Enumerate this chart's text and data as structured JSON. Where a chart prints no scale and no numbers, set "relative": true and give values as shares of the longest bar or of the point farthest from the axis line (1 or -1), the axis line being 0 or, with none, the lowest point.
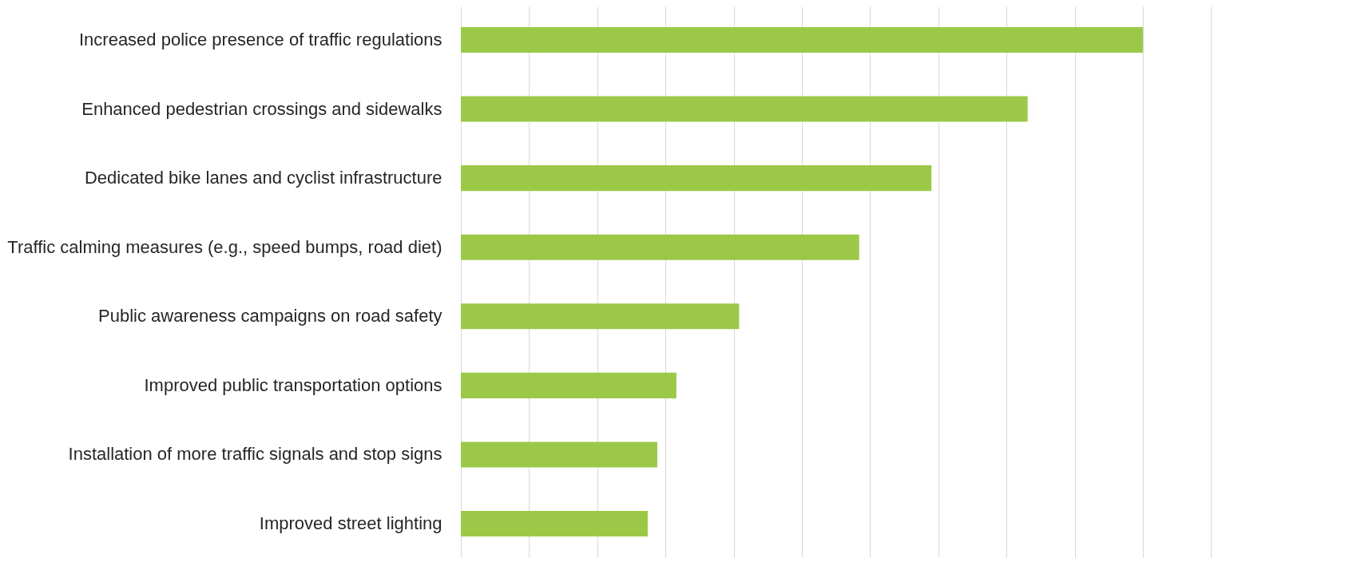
{
  "chart_data": {
    "type": "bar",
    "orientation": "horizontal",
    "relative": true,
    "grid": "x",
    "categories": [
      "Increased police presence of traffic regulations",
      "Enhanced pedestrian crossings and sidewalks",
      "Dedicated bike lanes and cyclist infrastructure",
      "Traffic calming measures (e.g., speed bumps, road diet)",
      "Public awareness campaigns on road safety",
      "Improved public transportation options",
      "Installation of more traffic signals and stop signs",
      "Improved street lighting"
    ],
    "values": [
      1,
      0.831,
      0.69,
      0.584,
      0.408,
      0.316,
      0.288,
      0.274
    ],
    "color": "#9bc947"
  }
}
